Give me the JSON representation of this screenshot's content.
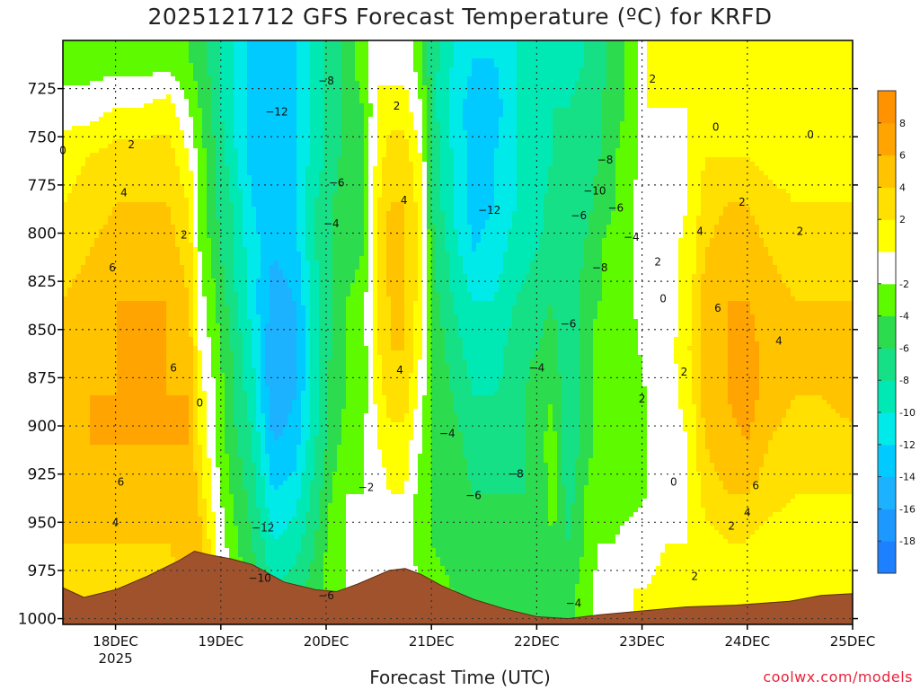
{
  "chart_data": {
    "type": "heatmap",
    "title": "2025121712 GFS Forecast Temperature (ºC) for KRFD",
    "xlabel": "Forecast Time (UTC)",
    "ylabel": "",
    "credit": "coolwx.com/models",
    "x_ticks": [
      {
        "label": "18DEC",
        "sub": "2025",
        "day": 1
      },
      {
        "label": "19DEC",
        "sub": "",
        "day": 2
      },
      {
        "label": "20DEC",
        "sub": "",
        "day": 3
      },
      {
        "label": "21DEC",
        "sub": "",
        "day": 4
      },
      {
        "label": "22DEC",
        "sub": "",
        "day": 5
      },
      {
        "label": "23DEC",
        "sub": "",
        "day": 6
      },
      {
        "label": "24DEC",
        "sub": "",
        "day": 7
      },
      {
        "label": "25DEC",
        "sub": "",
        "day": 8
      }
    ],
    "x_range_days": [
      0.5,
      8.0
    ],
    "y_ticks": [
      "725",
      "750",
      "775",
      "800",
      "825",
      "850",
      "875",
      "900",
      "925",
      "950",
      "975",
      "1000"
    ],
    "y_range_hpa": [
      700,
      1003
    ],
    "colorbar": {
      "levels": [
        -20,
        -18,
        -16,
        -14,
        -12,
        -10,
        -8,
        -6,
        -4,
        -2,
        0,
        2,
        4,
        6,
        8,
        10
      ],
      "labels": [
        "-18",
        "-16",
        "-14",
        "-12",
        "-10",
        "-8",
        "-6",
        "-4",
        "-2",
        "2",
        "4",
        "6",
        "8"
      ],
      "colors": [
        "#1c80ff",
        "#1c98ff",
        "#1cb2ff",
        "#00caff",
        "#00eaea",
        "#00e9b4",
        "#16e086",
        "#2cdc4e",
        "#5dfa00",
        "#ffffff",
        "#ffff00",
        "#ffe000",
        "#ffc300",
        "#ffa400",
        "#ff9200"
      ]
    },
    "terrain_color": "#a0522d",
    "terrain_hpa": [
      [
        0.5,
        984
      ],
      [
        0.7,
        989
      ],
      [
        1.0,
        985
      ],
      [
        1.3,
        978
      ],
      [
        1.6,
        970
      ],
      [
        1.75,
        965
      ],
      [
        1.9,
        967
      ],
      [
        2.1,
        969
      ],
      [
        2.3,
        972
      ],
      [
        2.6,
        981
      ],
      [
        2.9,
        985
      ],
      [
        3.1,
        986
      ],
      [
        3.3,
        982
      ],
      [
        3.6,
        975
      ],
      [
        3.75,
        974
      ],
      [
        3.9,
        977
      ],
      [
        4.1,
        983
      ],
      [
        4.4,
        990
      ],
      [
        4.7,
        995
      ],
      [
        5.0,
        999
      ],
      [
        5.3,
        1000
      ],
      [
        5.6,
        998
      ],
      [
        6.0,
        996
      ],
      [
        6.4,
        994
      ],
      [
        6.9,
        993
      ],
      [
        7.4,
        991
      ],
      [
        7.7,
        988
      ],
      [
        8.0,
        987
      ]
    ],
    "profiles": [
      {
        "day": 0.5,
        "T": [
          -3,
          -1,
          1,
          2,
          3,
          4,
          5,
          5,
          6,
          5,
          4,
          3
        ]
      },
      {
        "day": 0.75,
        "T": [
          -3,
          -1,
          2,
          3,
          4,
          5,
          5,
          6,
          6,
          5,
          4,
          3
        ]
      },
      {
        "day": 1.0,
        "T": [
          -3,
          0,
          3,
          4,
          5,
          6,
          6,
          6,
          6,
          5,
          4,
          3
        ]
      },
      {
        "day": 1.25,
        "T": [
          -3,
          0,
          3,
          4,
          5,
          6,
          6,
          6,
          6,
          5,
          4,
          3
        ]
      },
      {
        "day": 1.5,
        "T": [
          -3,
          1,
          3,
          4,
          5,
          6,
          6,
          6,
          6,
          5,
          4,
          3
        ]
      },
      {
        "day": 1.7,
        "T": [
          -4,
          -2,
          0,
          2,
          3,
          4,
          5,
          6,
          6,
          6,
          5,
          5
        ]
      },
      {
        "day": 1.8,
        "T": [
          -5,
          -4,
          -3,
          -3,
          -2,
          -1,
          0,
          1,
          2,
          3,
          5,
          6
        ]
      },
      {
        "day": 1.95,
        "T": [
          -7,
          -7,
          -6,
          -6,
          -5,
          -4,
          -3,
          -2,
          -2,
          -1,
          0,
          1
        ]
      },
      {
        "day": 2.1,
        "T": [
          -10,
          -10,
          -9,
          -8,
          -8,
          -7,
          -6,
          -6,
          -5,
          -4,
          -3,
          -2
        ]
      },
      {
        "day": 2.3,
        "T": [
          -13,
          -13,
          -13,
          -12,
          -11,
          -11,
          -10,
          -9,
          -8,
          -7,
          -6,
          -5
        ]
      },
      {
        "day": 2.5,
        "T": [
          -14,
          -13,
          -13,
          -13,
          -14,
          -15,
          -16,
          -16,
          -14,
          -12,
          -10,
          -8
        ]
      },
      {
        "day": 2.7,
        "T": [
          -12,
          -12,
          -12,
          -12,
          -13,
          -14,
          -15,
          -14,
          -13,
          -11,
          -9,
          -7
        ]
      },
      {
        "day": 2.9,
        "T": [
          -9,
          -9,
          -9,
          -8,
          -8,
          -9,
          -9,
          -9,
          -8,
          -7,
          -6,
          -5
        ]
      },
      {
        "day": 3.05,
        "T": [
          -7,
          -7,
          -7,
          -6,
          -6,
          -6,
          -6,
          -5,
          -5,
          -4,
          -3,
          -3
        ]
      },
      {
        "day": 3.2,
        "T": [
          -5,
          -5,
          -5,
          -5,
          -5,
          -4,
          -4,
          -4,
          -3,
          -2,
          -2,
          -2
        ]
      },
      {
        "day": 3.35,
        "T": [
          -3,
          -4,
          -4,
          -4,
          -4,
          -3,
          -3,
          -3,
          -2,
          -2,
          -1,
          -1
        ]
      },
      {
        "day": 3.5,
        "T": [
          0,
          0,
          1,
          2,
          2,
          3,
          2,
          1,
          0,
          -1,
          -1,
          -1
        ]
      },
      {
        "day": 3.6,
        "T": [
          -1,
          1,
          3,
          4,
          5,
          4,
          4,
          3,
          1,
          0,
          -1,
          -1
        ]
      },
      {
        "day": 3.75,
        "T": [
          -1,
          1,
          3,
          4,
          4,
          4,
          4,
          3,
          1,
          0,
          -1,
          -1
        ]
      },
      {
        "day": 3.9,
        "T": [
          -3,
          -2,
          0,
          1,
          1,
          1,
          0,
          -1,
          -2,
          -3,
          -3,
          -2
        ]
      },
      {
        "day": 4.0,
        "T": [
          -7,
          -7,
          -6,
          -6,
          -5,
          -5,
          -4,
          -4,
          -4,
          -4,
          -4,
          -3
        ]
      },
      {
        "day": 4.2,
        "T": [
          -10,
          -11,
          -10,
          -10,
          -9,
          -8,
          -7,
          -6,
          -5,
          -5,
          -5,
          -4
        ]
      },
      {
        "day": 4.4,
        "T": [
          -12,
          -13,
          -13,
          -13,
          -12,
          -10,
          -9,
          -8,
          -7,
          -6,
          -6,
          -5
        ]
      },
      {
        "day": 4.6,
        "T": [
          -12,
          -13,
          -12,
          -12,
          -11,
          -10,
          -9,
          -8,
          -7,
          -6,
          -6,
          -5
        ]
      },
      {
        "day": 4.8,
        "T": [
          -10,
          -10,
          -10,
          -10,
          -9,
          -8,
          -7,
          -7,
          -7,
          -6,
          -6,
          -5
        ]
      },
      {
        "day": 5.0,
        "T": [
          -10,
          -9,
          -9,
          -9,
          -8,
          -7,
          -6,
          -5,
          -5,
          -6,
          -6,
          -6
        ]
      },
      {
        "day": 5.15,
        "T": [
          -9,
          -8,
          -8,
          -7,
          -7,
          -6,
          -5,
          -4,
          -3,
          -3,
          -4,
          -5
        ]
      },
      {
        "day": 5.3,
        "T": [
          -9,
          -8,
          -7,
          -8,
          -8,
          -8,
          -8,
          -8,
          -8,
          -7,
          -6,
          -5
        ]
      },
      {
        "day": 5.45,
        "T": [
          -8,
          -7,
          -7,
          -7,
          -6,
          -5,
          -5,
          -5,
          -5,
          -4,
          -4,
          -3
        ]
      },
      {
        "day": 5.6,
        "T": [
          -7,
          -6,
          -6,
          -5,
          -4,
          -4,
          -3,
          -3,
          -3,
          -3,
          -2,
          -1
        ]
      },
      {
        "day": 5.75,
        "T": [
          -5,
          -5,
          -4,
          -4,
          -3,
          -3,
          -3,
          -3,
          -3,
          -3,
          -2,
          -1
        ]
      },
      {
        "day": 5.9,
        "T": [
          -3,
          -3,
          -3,
          -2,
          -2,
          -2,
          -3,
          -3,
          -3,
          -3,
          -1,
          0
        ]
      },
      {
        "day": 6.05,
        "T": [
          0,
          0,
          0,
          -1,
          -1,
          -1,
          -1,
          -2,
          -2,
          -2,
          -1,
          0
        ]
      },
      {
        "day": 6.25,
        "T": [
          1,
          0,
          -1,
          -1,
          -1,
          -1,
          -1,
          -1,
          -1,
          -1,
          0,
          1
        ]
      },
      {
        "day": 6.45,
        "T": [
          1,
          0,
          0,
          0,
          1,
          1,
          2,
          1,
          0,
          0,
          0,
          1
        ]
      },
      {
        "day": 6.6,
        "T": [
          1,
          0,
          2,
          3,
          4,
          5,
          5,
          5,
          4,
          3,
          1,
          1
        ]
      },
      {
        "day": 6.8,
        "T": [
          1,
          0,
          2,
          4,
          5,
          6,
          6,
          6,
          5,
          4,
          2,
          1
        ]
      },
      {
        "day": 7.0,
        "T": [
          1,
          0,
          2,
          4,
          5,
          6,
          7,
          7,
          6,
          4,
          2,
          1
        ]
      },
      {
        "day": 7.2,
        "T": [
          1,
          0,
          1,
          3,
          4,
          5,
          5,
          5,
          4,
          3,
          1,
          1
        ]
      },
      {
        "day": 7.45,
        "T": [
          1,
          0,
          1,
          2,
          3,
          4,
          4,
          4,
          3,
          2,
          1,
          1
        ]
      },
      {
        "day": 7.7,
        "T": [
          1,
          0,
          1,
          2,
          3,
          4,
          4,
          4,
          3,
          2,
          1,
          1
        ]
      },
      {
        "day": 8.0,
        "T": [
          1,
          0,
          1,
          2,
          3,
          4,
          5,
          5,
          3,
          2,
          1,
          1
        ]
      }
    ],
    "profile_levels_hpa": [
      710,
      735,
      760,
      785,
      810,
      835,
      860,
      885,
      910,
      935,
      960,
      985
    ],
    "contour_labels": [
      {
        "text": "0",
        "day": 0.5,
        "p": 757
      },
      {
        "text": "2",
        "day": 1.15,
        "p": 754
      },
      {
        "text": "4",
        "day": 1.08,
        "p": 779
      },
      {
        "text": "2",
        "day": 1.65,
        "p": 801
      },
      {
        "text": "6",
        "day": 0.97,
        "p": 818
      },
      {
        "text": "6",
        "day": 1.55,
        "p": 870
      },
      {
        "text": "0",
        "day": 1.8,
        "p": 888
      },
      {
        "text": "6",
        "day": 1.05,
        "p": 929
      },
      {
        "text": "4",
        "day": 1.0,
        "p": 950
      },
      {
        "text": "−12",
        "day": 2.53,
        "p": 737
      },
      {
        "text": "−8",
        "day": 3.0,
        "p": 721
      },
      {
        "text": "−6",
        "day": 3.1,
        "p": 774
      },
      {
        "text": "−4",
        "day": 3.05,
        "p": 795
      },
      {
        "text": "−12",
        "day": 2.4,
        "p": 953
      },
      {
        "text": "−10",
        "day": 2.37,
        "p": 979
      },
      {
        "text": "−6",
        "day": 3.0,
        "p": 988
      },
      {
        "text": "−2",
        "day": 3.38,
        "p": 932
      },
      {
        "text": "2",
        "day": 3.67,
        "p": 734
      },
      {
        "text": "4",
        "day": 3.74,
        "p": 783
      },
      {
        "text": "4",
        "day": 3.7,
        "p": 871
      },
      {
        "text": "−12",
        "day": 4.55,
        "p": 788
      },
      {
        "text": "−4",
        "day": 4.15,
        "p": 904
      },
      {
        "text": "−6",
        "day": 4.4,
        "p": 936
      },
      {
        "text": "−8",
        "day": 4.8,
        "p": 925
      },
      {
        "text": "−6",
        "day": 5.3,
        "p": 847
      },
      {
        "text": "−4",
        "day": 5.0,
        "p": 870
      },
      {
        "text": "−8",
        "day": 5.6,
        "p": 818
      },
      {
        "text": "−6",
        "day": 5.4,
        "p": 791
      },
      {
        "text": "−8",
        "day": 5.65,
        "p": 762
      },
      {
        "text": "−10",
        "day": 5.55,
        "p": 778
      },
      {
        "text": "−6",
        "day": 5.75,
        "p": 787
      },
      {
        "text": "−4",
        "day": 5.9,
        "p": 802
      },
      {
        "text": "−4",
        "day": 5.35,
        "p": 992
      },
      {
        "text": "2",
        "day": 6.1,
        "p": 720
      },
      {
        "text": "0",
        "day": 6.7,
        "p": 745
      },
      {
        "text": "0",
        "day": 7.6,
        "p": 749
      },
      {
        "text": "2",
        "day": 6.15,
        "p": 815
      },
      {
        "text": "0",
        "day": 6.2,
        "p": 834
      },
      {
        "text": "2",
        "day": 6.4,
        "p": 872
      },
      {
        "text": "2",
        "day": 6.0,
        "p": 886
      },
      {
        "text": "4",
        "day": 6.55,
        "p": 799
      },
      {
        "text": "2",
        "day": 6.95,
        "p": 784
      },
      {
        "text": "2",
        "day": 7.5,
        "p": 799
      },
      {
        "text": "6",
        "day": 6.72,
        "p": 839
      },
      {
        "text": "4",
        "day": 7.3,
        "p": 856
      },
      {
        "text": "0",
        "day": 6.3,
        "p": 929
      },
      {
        "text": "6",
        "day": 7.08,
        "p": 931
      },
      {
        "text": "4",
        "day": 7.0,
        "p": 945
      },
      {
        "text": "2",
        "day": 6.85,
        "p": 952
      },
      {
        "text": "2",
        "day": 6.5,
        "p": 978
      }
    ]
  }
}
